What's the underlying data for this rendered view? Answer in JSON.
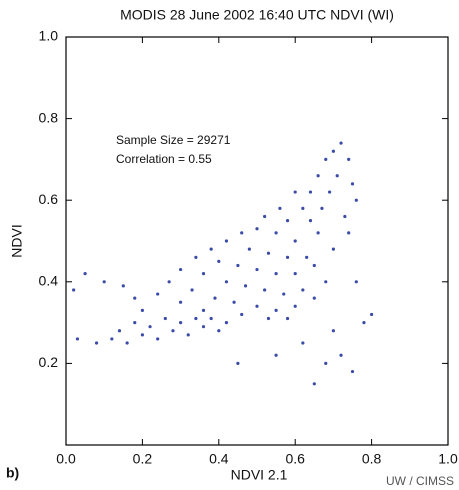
{
  "chart_data": {
    "type": "scatter",
    "title": "MODIS 28 June 2002 16:40 UTC NDVI (WI)",
    "x_label": "NDVI 2.1",
    "y_label": "NDVI",
    "annotations": [
      "Sample Size = 29271",
      "Correlation = 0.55"
    ],
    "panel_label": "b)",
    "credit": "UW / CIMSS",
    "color": "#3b4ba8",
    "xlim": [
      0,
      1
    ],
    "ylim": [
      0,
      1
    ],
    "xticks": [
      {
        "value": 0,
        "label": "0.0"
      },
      0.2,
      0.4,
      0.6,
      0.8,
      {
        "value": 1,
        "label": "1.0"
      }
    ],
    "yticks": [
      0.2,
      0.4,
      0.6,
      0.8,
      {
        "value": 1,
        "label": "1.0"
      }
    ],
    "x": [
      0.72,
      0.7,
      0.74,
      0.68,
      0.71,
      0.66,
      0.64,
      0.69,
      0.6,
      0.62,
      0.67,
      0.56,
      0.58,
      0.64,
      0.52,
      0.5,
      0.55,
      0.6,
      0.66,
      0.46,
      0.42,
      0.48,
      0.53,
      0.58,
      0.63,
      0.38,
      0.34,
      0.4,
      0.45,
      0.5,
      0.55,
      0.6,
      0.65,
      0.3,
      0.36,
      0.42,
      0.47,
      0.52,
      0.57,
      0.62,
      0.27,
      0.33,
      0.39,
      0.44,
      0.5,
      0.55,
      0.6,
      0.65,
      0.24,
      0.3,
      0.36,
      0.46,
      0.53,
      0.58,
      0.68,
      0.7,
      0.73,
      0.75,
      0.76,
      0.74,
      0.08,
      0.12,
      0.16,
      0.2,
      0.24,
      0.28,
      0.32,
      0.36,
      0.4,
      0.14,
      0.18,
      0.22,
      0.26,
      0.3,
      0.34,
      0.38,
      0.42,
      0.2,
      0.18,
      0.15,
      0.02,
      0.05,
      0.1,
      0.7,
      0.72,
      0.75,
      0.65,
      0.68,
      0.78,
      0.62,
      0.55,
      0.45,
      0.03,
      0.8,
      0.76
    ],
    "values": [
      0.74,
      0.72,
      0.7,
      0.7,
      0.66,
      0.66,
      0.62,
      0.62,
      0.62,
      0.58,
      0.58,
      0.58,
      0.55,
      0.55,
      0.56,
      0.53,
      0.52,
      0.5,
      0.52,
      0.52,
      0.5,
      0.48,
      0.47,
      0.46,
      0.46,
      0.48,
      0.46,
      0.45,
      0.44,
      0.43,
      0.42,
      0.42,
      0.44,
      0.43,
      0.42,
      0.4,
      0.39,
      0.38,
      0.37,
      0.38,
      0.4,
      0.38,
      0.36,
      0.35,
      0.34,
      0.33,
      0.34,
      0.36,
      0.37,
      0.35,
      0.33,
      0.32,
      0.31,
      0.31,
      0.4,
      0.48,
      0.56,
      0.64,
      0.6,
      0.52,
      0.25,
      0.26,
      0.25,
      0.27,
      0.26,
      0.28,
      0.27,
      0.29,
      0.28,
      0.28,
      0.3,
      0.29,
      0.31,
      0.3,
      0.31,
      0.31,
      0.3,
      0.33,
      0.36,
      0.39,
      0.38,
      0.42,
      0.4,
      0.28,
      0.22,
      0.18,
      0.15,
      0.2,
      0.3,
      0.25,
      0.22,
      0.2,
      0.26,
      0.32,
      0.4
    ]
  }
}
